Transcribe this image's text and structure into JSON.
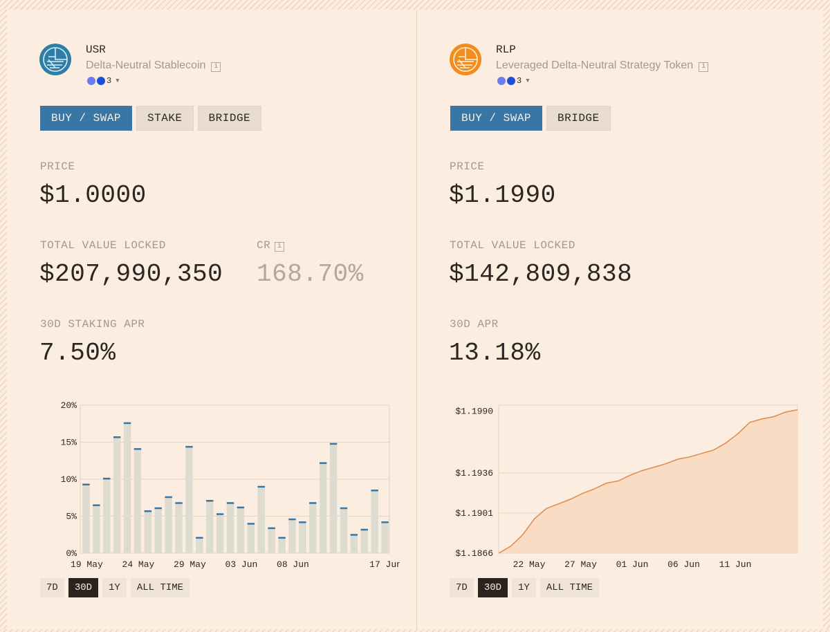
{
  "usr": {
    "name": "USR",
    "subtitle": "Delta-Neutral Stablecoin",
    "chain_count": "3",
    "buttons": [
      "BUY / SWAP",
      "STAKE",
      "BRIDGE"
    ],
    "price_label": "PRICE",
    "price": "$1.0000",
    "tvl_label": "TOTAL VALUE LOCKED",
    "tvl": "$207,990,350",
    "cr_label": "CR",
    "cr": "168.70%",
    "apr_label": "30D STAKING APR",
    "apr": "7.50%",
    "ranges": [
      "7D",
      "30D",
      "1Y",
      "ALL TIME"
    ],
    "active_range": "30D",
    "logo_color": "#2f7ea5"
  },
  "rlp": {
    "name": "RLP",
    "subtitle": "Leveraged Delta-Neutral Strategy Token",
    "chain_count": "3",
    "buttons": [
      "BUY / SWAP",
      "BRIDGE"
    ],
    "price_label": "PRICE",
    "price": "$1.1990",
    "tvl_label": "TOTAL VALUE LOCKED",
    "tvl": "$142,809,838",
    "apr_label": "30D APR",
    "apr": "13.18%",
    "ranges": [
      "7D",
      "30D",
      "1Y",
      "ALL TIME"
    ],
    "active_range": "30D",
    "logo_color": "#f28c1c"
  },
  "chart_data": [
    {
      "type": "bar",
      "ylim": [
        0,
        20
      ],
      "y_ticks": [
        "0%",
        "5%",
        "10%",
        "15%",
        "20%"
      ],
      "x_tick_labels": [
        "19 May",
        "24 May",
        "29 May",
        "03 Jun",
        "08 Jun",
        "17 Jun"
      ],
      "values": [
        9.3,
        6.5,
        10.1,
        15.7,
        17.6,
        14.1,
        5.7,
        6.1,
        7.6,
        6.8,
        14.4,
        2.1,
        7.1,
        5.3,
        6.8,
        6.2,
        4.0,
        9.0,
        3.4,
        2.1,
        4.6,
        4.2,
        6.8,
        12.2,
        14.8,
        6.1,
        2.5,
        3.2,
        8.5,
        4.2
      ],
      "bar_color": "#dedbd0",
      "cap_color": "#3a76a3"
    },
    {
      "type": "area",
      "ylim": [
        1.1866,
        1.1995
      ],
      "y_ticks": [
        "$1.1866",
        "$1.1901",
        "$1.1936",
        "$1.1990"
      ],
      "y_tick_values": [
        1.1866,
        1.1901,
        1.1936,
        1.199
      ],
      "x_tick_labels": [
        "22 May",
        "27 May",
        "01 Jun",
        "06 Jun",
        "11 Jun"
      ],
      "values": [
        1.1866,
        1.1872,
        1.1882,
        1.1896,
        1.1905,
        1.1909,
        1.1913,
        1.1918,
        1.1922,
        1.1927,
        1.1929,
        1.1934,
        1.1938,
        1.1941,
        1.1944,
        1.1948,
        1.195,
        1.1953,
        1.1956,
        1.1962,
        1.197,
        1.198,
        1.1983,
        1.1985,
        1.1989,
        1.1991
      ],
      "line_color": "#e0894a",
      "fill_color": "#f8dcc4"
    }
  ]
}
